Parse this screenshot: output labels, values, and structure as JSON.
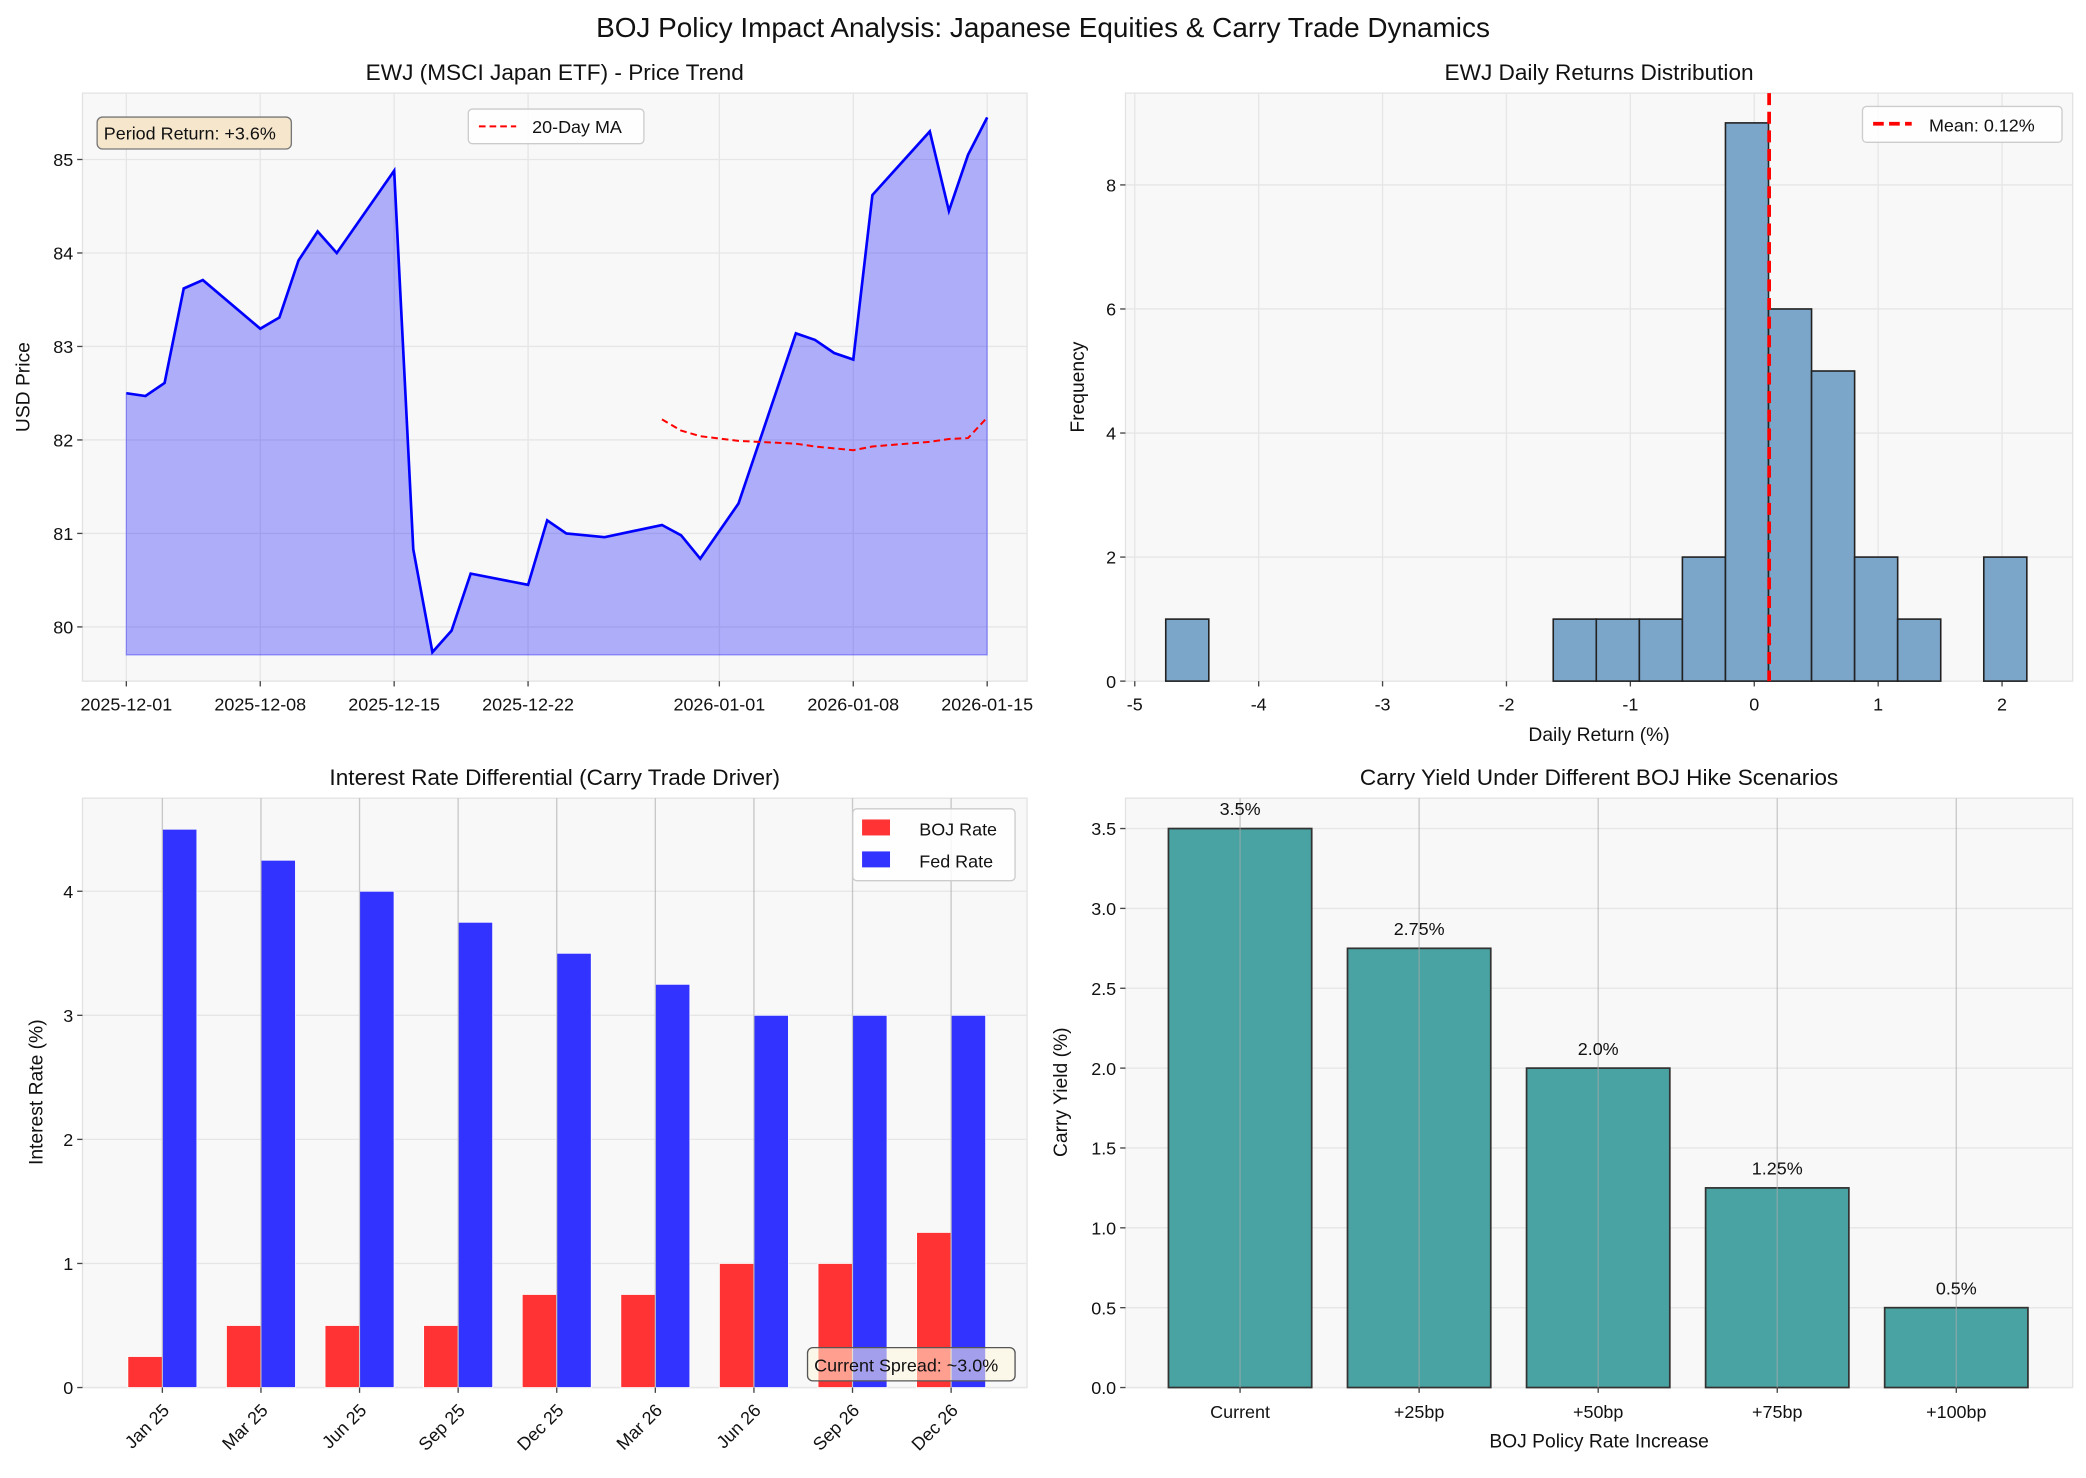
{
  "title": "BOJ Policy Impact Analysis: Japanese Equities & Carry Trade Dynamics",
  "chart_data": [
    {
      "type": "line",
      "title": "EWJ (MSCI Japan ETF) - Price Trend",
      "xlabel": "",
      "ylabel": "USD Price",
      "x": [
        "2025-12-01",
        "2025-12-02",
        "2025-12-03",
        "2025-12-04",
        "2025-12-05",
        "2025-12-08",
        "2025-12-09",
        "2025-12-10",
        "2025-12-11",
        "2025-12-12",
        "2025-12-15",
        "2025-12-16",
        "2025-12-17",
        "2025-12-18",
        "2025-12-19",
        "2025-12-22",
        "2025-12-23",
        "2025-12-24",
        "2025-12-26",
        "2025-12-29",
        "2025-12-30",
        "2025-12-31",
        "2026-01-02",
        "2026-01-05",
        "2026-01-06",
        "2026-01-07",
        "2026-01-08",
        "2026-01-09",
        "2026-01-12",
        "2026-01-13",
        "2026-01-14",
        "2026-01-15"
      ],
      "series": [
        {
          "name": "",
          "color": "#0000ff",
          "fill_color": "#0000ff",
          "fill_baseline": 79.7,
          "values": [
            82.5,
            82.47,
            82.61,
            83.62,
            83.71,
            83.19,
            83.31,
            83.92,
            84.23,
            84.0,
            84.88,
            80.83,
            79.73,
            79.96,
            80.57,
            80.45,
            81.14,
            81.0,
            80.96,
            81.09,
            80.98,
            80.73,
            81.32,
            83.14,
            83.07,
            82.93,
            82.86,
            84.62,
            85.3,
            84.45,
            85.05,
            85.45
          ]
        },
        {
          "name": "20-Day MA",
          "color": "#ff0000",
          "style": "dashed",
          "x": [
            "2025-12-29",
            "2025-12-30",
            "2025-12-31",
            "2026-01-02",
            "2026-01-05",
            "2026-01-06",
            "2026-01-07",
            "2026-01-08",
            "2026-01-09",
            "2026-01-12",
            "2026-01-13",
            "2026-01-14",
            "2026-01-15"
          ],
          "values": [
            82.22,
            82.1,
            82.04,
            81.99,
            81.96,
            81.93,
            81.91,
            81.89,
            81.93,
            81.98,
            82.01,
            82.02,
            82.24
          ]
        }
      ],
      "xticks": [
        "2025-12-01",
        "2025-12-08",
        "2025-12-15",
        "2025-12-22",
        "2026-01-01",
        "2026-01-08",
        "2026-01-15"
      ],
      "yticks": [
        80,
        81,
        82,
        83,
        84,
        85
      ],
      "ytick_labels": [
        "80",
        "81",
        "82",
        "83",
        "84",
        "85"
      ],
      "xlim": [
        "2025-11-28T17:00:00Z",
        "2026-01-17T02:00:00Z"
      ],
      "ylim": [
        79.42,
        85.71
      ],
      "annotation": "Period Return: +3.6%",
      "legend": "upper center",
      "grid": true
    },
    {
      "type": "histogram",
      "title": "EWJ Daily Returns Distribution",
      "xlabel": "Daily Return (%)",
      "ylabel": "Frequency",
      "bin_start": -4.75,
      "bin_width": 0.3475,
      "counts": [
        1,
        0,
        0,
        0,
        0,
        0,
        0,
        0,
        0,
        1,
        1,
        1,
        2,
        9,
        6,
        5,
        2,
        1,
        0,
        2
      ],
      "color": "#7ba5c9",
      "edge_color": "#222222",
      "mean": 0.12,
      "mean_label": "Mean: 0.12%",
      "mean_color": "#ff0000",
      "xticks": [
        -5,
        -4,
        -3,
        -2,
        -1,
        0,
        1,
        2
      ],
      "xtick_labels": [
        "-5",
        "-4",
        "-3",
        "-2",
        "-1",
        "0",
        "1",
        "2"
      ],
      "yticks": [
        0,
        2,
        4,
        6,
        8
      ],
      "ytick_labels": [
        "0",
        "2",
        "4",
        "6",
        "8"
      ],
      "xlim": [
        -5.075,
        2.57
      ],
      "ylim": [
        0,
        9.48
      ],
      "legend": "upper right",
      "grid": true
    },
    {
      "type": "bar",
      "title": "Interest Rate Differential (Carry Trade Driver)",
      "xlabel": "",
      "ylabel": "Interest Rate (%)",
      "categories": [
        "Jan 25",
        "Mar 25",
        "Jun 25",
        "Sep 25",
        "Dec 25",
        "Mar 26",
        "Jun 26",
        "Sep 26",
        "Dec 26"
      ],
      "series": [
        {
          "name": "BOJ Rate",
          "color": "#ff3333",
          "values": [
            0.25,
            0.5,
            0.5,
            0.5,
            0.75,
            0.75,
            1.0,
            1.0,
            1.25
          ]
        },
        {
          "name": "Fed Rate",
          "color": "#3333ff",
          "values": [
            4.5,
            4.25,
            4.0,
            3.75,
            3.5,
            3.25,
            3.0,
            3.0,
            3.0
          ]
        }
      ],
      "bar_width": 0.35,
      "yticks": [
        0,
        1,
        2,
        3,
        4
      ],
      "ytick_labels": [
        "0",
        "1",
        "2",
        "3",
        "4"
      ],
      "xlim": [
        -0.81,
        8.77
      ],
      "ylim": [
        0,
        4.75
      ],
      "annotation": "Current Spread: ~3.0%",
      "legend": "upper right",
      "grid": true
    },
    {
      "type": "bar",
      "title": "Carry Yield Under Different BOJ Hike Scenarios",
      "xlabel": "BOJ Policy Rate Increase",
      "ylabel": "Carry Yield (%)",
      "categories": [
        "Current",
        "+25bp",
        "+50bp",
        "+75bp",
        "+100bp"
      ],
      "values": [
        3.5,
        2.75,
        2.0,
        1.25,
        0.5
      ],
      "data_labels": [
        "3.5%",
        "2.75%",
        "2.0%",
        "1.25%",
        "0.5%"
      ],
      "color": "#4aa3a3",
      "edge_color": "#333333",
      "bar_width": 0.8,
      "yticks": [
        0,
        0.5,
        1.0,
        1.5,
        2.0,
        2.5,
        3.0,
        3.5
      ],
      "ytick_labels": [
        "0.0",
        "0.5",
        "1.0",
        "1.5",
        "2.0",
        "2.5",
        "3.0",
        "3.5"
      ],
      "xlim": [
        -0.64,
        4.65
      ],
      "ylim": [
        0,
        3.69
      ],
      "grid": true
    }
  ]
}
